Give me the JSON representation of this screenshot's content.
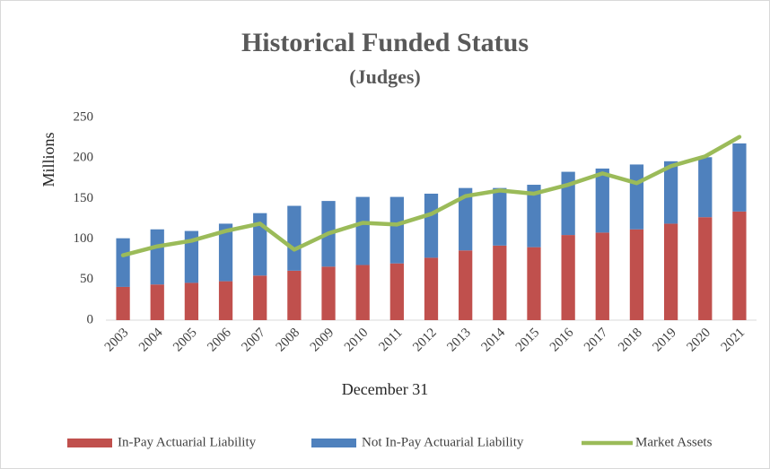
{
  "chart_data": {
    "type": "bar",
    "stacked": true,
    "title": "Historical Funded Status",
    "subtitle": "(Judges)",
    "x_label": "December 31",
    "y_label": "Millions",
    "categories": [
      "2003",
      "2004",
      "2005",
      "2006",
      "2007",
      "2008",
      "2009",
      "2010",
      "2011",
      "2012",
      "2013",
      "2014",
      "2015",
      "2016",
      "2017",
      "2018",
      "2019",
      "2020",
      "2021"
    ],
    "series": [
      {
        "name": "In-Pay Actuarial Liability",
        "color": "#c0504d",
        "type": "bar",
        "values": [
          41,
          44,
          46,
          48,
          55,
          61,
          66,
          68,
          70,
          77,
          86,
          92,
          90,
          105,
          108,
          112,
          119,
          127,
          134
        ]
      },
      {
        "name": "Not In-Pay Actuarial Liability",
        "color": "#4f81bd",
        "type": "bar",
        "values": [
          60,
          68,
          64,
          71,
          77,
          80,
          81,
          84,
          82,
          79,
          77,
          71,
          77,
          78,
          79,
          80,
          77,
          74,
          84
        ]
      },
      {
        "name": "Market Assets",
        "color": "#9bbb59",
        "type": "line",
        "values": [
          80,
          91,
          98,
          110,
          119,
          87,
          107,
          120,
          118,
          131,
          153,
          160,
          156,
          167,
          181,
          169,
          190,
          202,
          226
        ]
      }
    ],
    "ylim": [
      0,
      250
    ],
    "yticks": [
      0,
      50,
      100,
      150,
      200,
      250
    ],
    "grid": false,
    "legend": "bottom"
  }
}
